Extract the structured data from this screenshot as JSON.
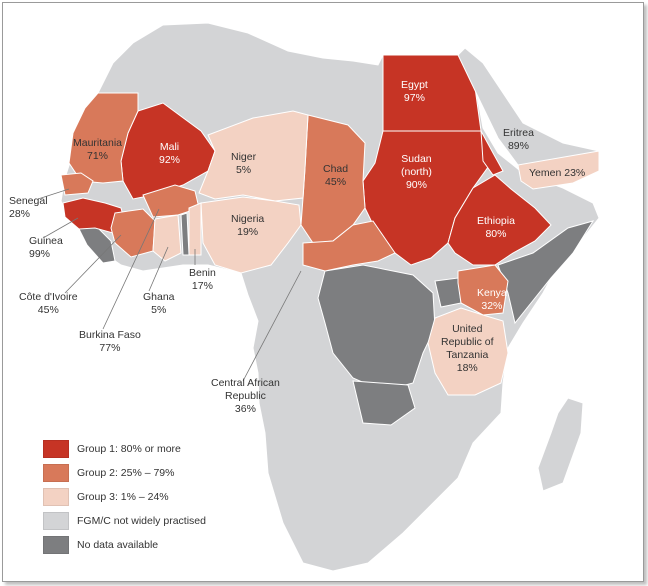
{
  "colors": {
    "group1": "#c63425",
    "group2": "#d8795a",
    "group3": "#f3d2c3",
    "not_practised": "#d3d4d6",
    "no_data": "#7d7e80",
    "border": "#ffffff"
  },
  "countries": {
    "egypt": {
      "name": "Egypt",
      "value": "97%"
    },
    "eritrea": {
      "name": "Eritrea",
      "value": "89%"
    },
    "yemen": {
      "name": "Yemen",
      "value": "23%"
    },
    "sudan": {
      "name": "Sudan (north)",
      "name_line1": "Sudan",
      "name_line2": "(north)",
      "value": "90%"
    },
    "ethiopia": {
      "name": "Ethiopia",
      "value": "80%"
    },
    "kenya": {
      "name": "Kenya",
      "value": "32%"
    },
    "tanzania": {
      "name": "United Republic of Tanzania",
      "name_line1": "United",
      "name_line2": "Republic of",
      "name_line3": "Tanzania",
      "value": "18%"
    },
    "mauritania": {
      "name": "Mauritania",
      "value": "71%"
    },
    "mali": {
      "name": "Mali",
      "value": "92%"
    },
    "niger": {
      "name": "Niger",
      "value": "5%"
    },
    "chad": {
      "name": "Chad",
      "value": "45%"
    },
    "senegal": {
      "name": "Senegal",
      "value": "28%"
    },
    "guinea": {
      "name": "Guinea",
      "value": "99%"
    },
    "nigeria": {
      "name": "Nigeria",
      "value": "19%"
    },
    "cote_divoire": {
      "name": "Côte d'Ivoire",
      "value": "45%"
    },
    "ghana": {
      "name": "Ghana",
      "value": "5%"
    },
    "benin": {
      "name": "Benin",
      "value": "17%"
    },
    "burkina_faso": {
      "name": "Burkina Faso",
      "value": "77%"
    },
    "car": {
      "name": "Central African Republic",
      "name_line1": "Central African",
      "name_line2": "Republic",
      "value": "36%"
    }
  },
  "legend": [
    {
      "label": "Group 1: 80% or more",
      "color": "#c63425"
    },
    {
      "label": "Group 2: 25% – 79%",
      "color": "#d8795a"
    },
    {
      "label": "Group 3: 1% – 24%",
      "color": "#f3d2c3"
    },
    {
      "label": "FGM/C not widely practised",
      "color": "#d3d4d6"
    },
    {
      "label": "No data available",
      "color": "#7d7e80"
    }
  ]
}
